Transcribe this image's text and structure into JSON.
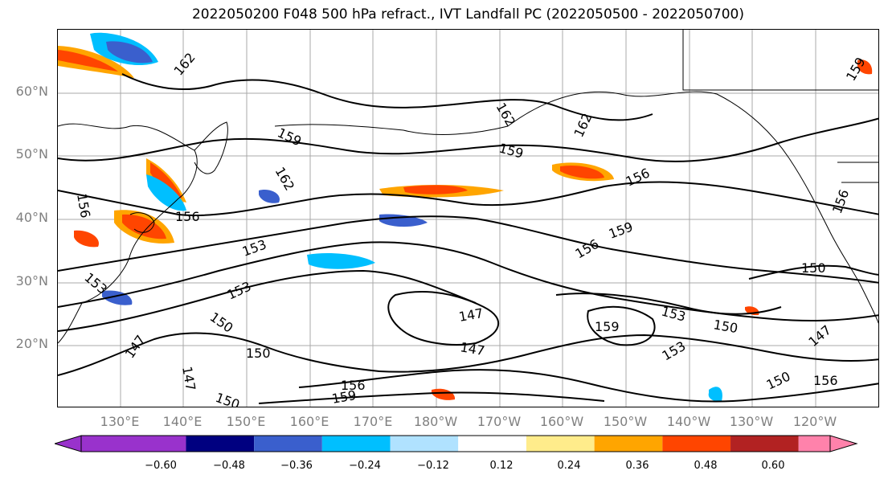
{
  "title": "2022050200 F048 500 hPa refract., IVT Landfall PC (2022050500 - 2022050700)",
  "latitude_labels": [
    "60°N",
    "50°N",
    "40°N",
    "30°N",
    "20°N"
  ],
  "longitude_labels": [
    "130°E",
    "140°E",
    "150°E",
    "160°E",
    "170°E",
    "180°W",
    "170°W",
    "160°W",
    "150°W",
    "140°W",
    "130°W",
    "120°W"
  ],
  "contour_labels": [
    "162",
    "162",
    "162",
    "162",
    "159",
    "159",
    "159",
    "159",
    "159",
    "159",
    "156",
    "156",
    "156",
    "156",
    "156",
    "156",
    "156",
    "153",
    "153",
    "153",
    "153",
    "153",
    "150",
    "150",
    "150",
    "150",
    "150",
    "150",
    "147",
    "147",
    "147",
    "147",
    "147"
  ],
  "colorbar": {
    "colors": [
      "#9932CC",
      "#000080",
      "#3A5FCD",
      "#00BFFF",
      "#B0E2FF",
      "#FFFFFF",
      "#FFEC8B",
      "#FFA500",
      "#FF4500",
      "#B22222",
      "#FF82AB"
    ],
    "tick_labels": [
      "−0.60",
      "−0.48",
      "−0.36",
      "−0.24",
      "−0.12",
      "0.12",
      "0.24",
      "0.36",
      "0.48",
      "0.60"
    ]
  }
}
